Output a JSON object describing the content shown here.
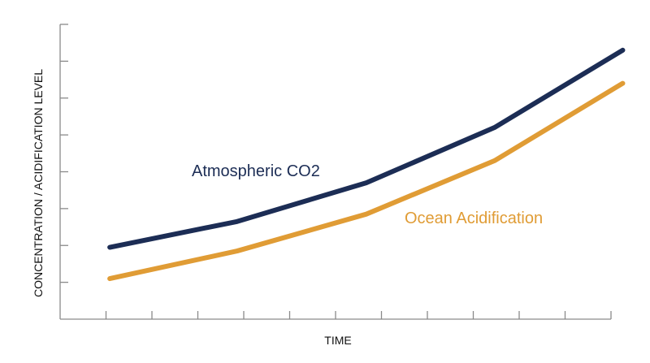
{
  "chart_data": {
    "type": "line",
    "title": "",
    "xlabel": "TIME",
    "ylabel": "CONCENTRATION / ACIDIFICATION LEVEL",
    "x": [
      0,
      1,
      2,
      3,
      4,
      5
    ],
    "xlim": [
      -0.55,
      5.55
    ],
    "ylim": [
      0,
      8
    ],
    "x_ticks": 12,
    "y_ticks": 8,
    "grid": false,
    "legend": "inline labels",
    "series": [
      {
        "name": "Atmospheric CO2",
        "values": [
          1.95,
          2.65,
          3.7,
          5.2,
          7.3
        ],
        "x": [
          0,
          1.41,
          2.84,
          4.26,
          5.68
        ],
        "color": "#1c2d55"
      },
      {
        "name": "Ocean Acidification",
        "values": [
          1.1,
          1.85,
          2.85,
          4.3,
          6.4
        ],
        "x": [
          0,
          1.41,
          2.84,
          4.26,
          5.68
        ],
        "color": "#e09c35"
      }
    ]
  }
}
